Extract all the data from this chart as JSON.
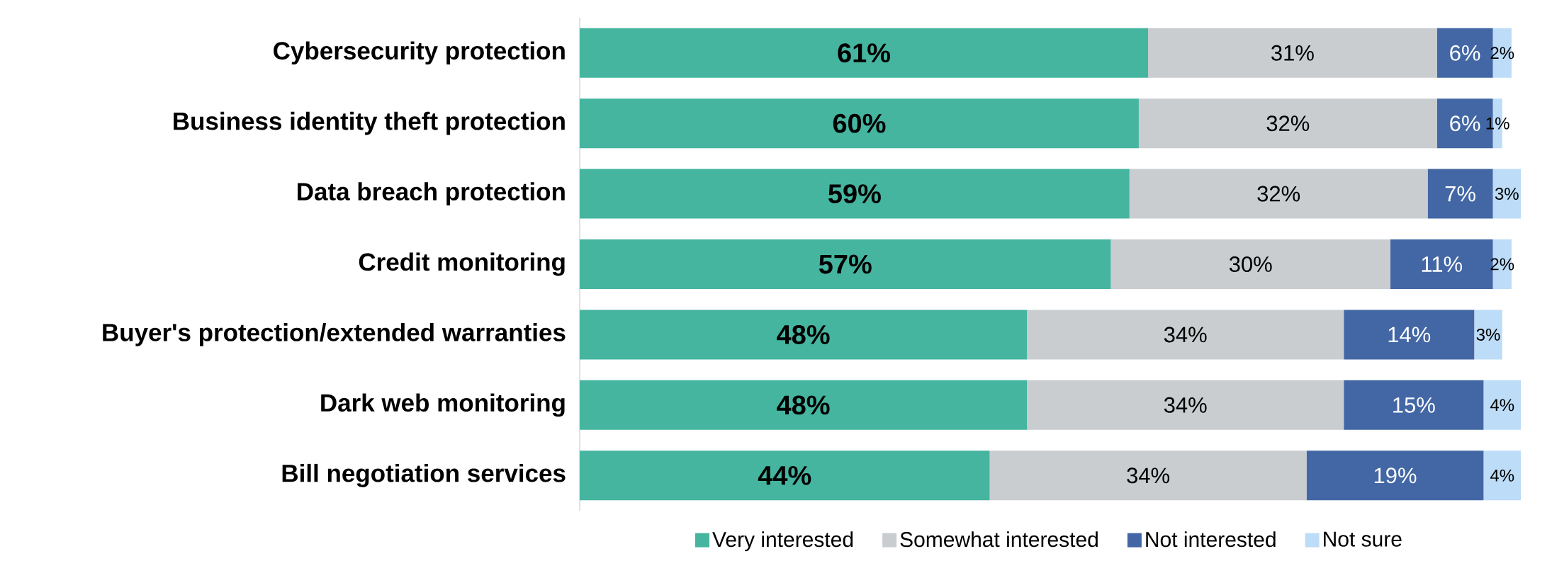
{
  "chart_data": {
    "type": "bar",
    "orientation": "horizontal",
    "stacked": true,
    "legend": "bottom",
    "categories": [
      "Cybersecurity protection",
      "Business identity theft protection",
      "Data breach protection",
      "Credit monitoring",
      "Buyer's protection/extended warranties",
      "Dark web monitoring",
      "Bill negotiation services"
    ],
    "series": [
      {
        "name": "Very interested",
        "color": "#45b5a0",
        "values": [
          61,
          60,
          59,
          57,
          48,
          48,
          44
        ],
        "value_labels": [
          "61%",
          "60%",
          "59%",
          "57%",
          "48%",
          "48%",
          "44%"
        ]
      },
      {
        "name": "Somewhat interested",
        "color": "#c9cdd0",
        "values": [
          31,
          32,
          32,
          30,
          34,
          34,
          34
        ],
        "value_labels": [
          "31%",
          "32%",
          "32%",
          "30%",
          "34%",
          "34%",
          "34%"
        ]
      },
      {
        "name": "Not interested",
        "color": "#4367a5",
        "values": [
          6,
          6,
          7,
          11,
          14,
          15,
          19
        ],
        "value_labels": [
          "6%",
          "6%",
          "7%",
          "11%",
          "14%",
          "15%",
          "19%"
        ]
      },
      {
        "name": "Not sure",
        "color": "#bddcf7",
        "values": [
          2,
          1,
          3,
          2,
          3,
          4,
          4
        ],
        "value_labels": [
          "2%",
          "1%",
          "3%",
          "2%",
          "3%",
          "4%",
          "4%"
        ]
      }
    ]
  }
}
